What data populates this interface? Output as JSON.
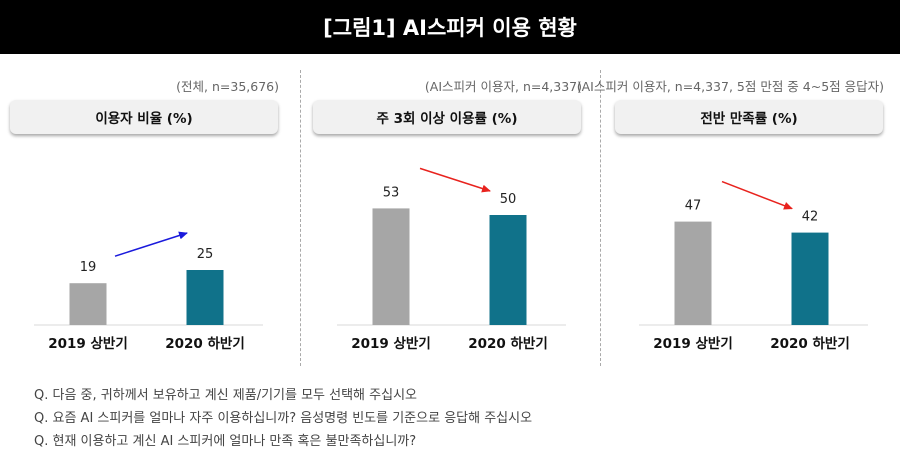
{
  "title": "[그림1] AI스피커 이용 현황",
  "chart_data": [
    {
      "type": "bar",
      "title": "이용자 비율 (%)",
      "note": "(전체, n=35,676)",
      "categories": [
        "2019 상반기",
        "2020 하반기"
      ],
      "values": [
        19,
        25
      ],
      "ylim": [
        0,
        60
      ],
      "colors": [
        "#a6a6a6",
        "#10728a"
      ],
      "trend_color": "#1a1adc"
    },
    {
      "type": "bar",
      "title": "주 3회 이상 이용률 (%)",
      "note": "(AI스피커 이용자, n=4,337)",
      "categories": [
        "2019 상반기",
        "2020 하반기"
      ],
      "values": [
        53,
        50
      ],
      "ylim": [
        0,
        60
      ],
      "colors": [
        "#a6a6a6",
        "#10728a"
      ],
      "trend_color": "#e8231e"
    },
    {
      "type": "bar",
      "title": "전반 만족률 (%)",
      "note": "(AI스피커 이용자, n=4,337, 5점 만점 중 4~5점 응답자)",
      "categories": [
        "2019 상반기",
        "2020 하반기"
      ],
      "values": [
        47,
        42
      ],
      "ylim": [
        0,
        60
      ],
      "colors": [
        "#a6a6a6",
        "#10728a"
      ],
      "trend_color": "#e8231e"
    }
  ],
  "questions": [
    "Q. 다음 중, 귀하께서 보유하고 계신 제품/기기를 모두 선택해 주십시오",
    "Q. 요즘 AI 스피커를 얼마나 자주 이용하십니까? 음성명령 빈도를 기준으로 응답해 주십시오",
    "Q. 현재 이용하고 계신 AI 스피커에 얼마나 만족 혹은 불만족하십니까?"
  ]
}
